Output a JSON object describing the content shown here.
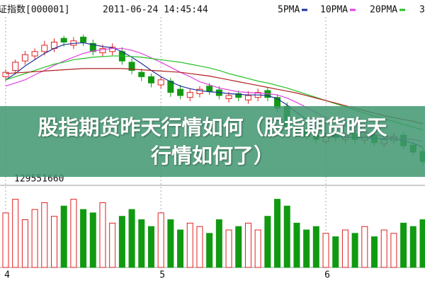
{
  "chart_data": [
    {
      "type": "candlestick",
      "title": "证指数[000001]",
      "subtitle": "2011-06-24 14:45:44",
      "categories": [
        "4",
        null,
        null,
        null,
        null,
        null,
        null,
        null,
        null,
        null,
        null,
        null,
        null,
        null,
        null,
        null,
        "5",
        null,
        null,
        null,
        null,
        null,
        null,
        null,
        null,
        null,
        null,
        null,
        null,
        null,
        null,
        null,
        null,
        "6",
        null,
        null,
        null,
        null,
        null,
        null,
        null,
        null,
        null,
        null
      ],
      "open": [
        2805,
        2815,
        2830,
        2838,
        2845,
        2850,
        2866,
        2855,
        2868,
        2858,
        2843,
        2845,
        2845,
        2828,
        2812,
        2805,
        2792,
        2798,
        2785,
        2772,
        2778,
        2790,
        2784,
        2770,
        2778,
        2768,
        2772,
        2783,
        2772,
        2758,
        2726,
        2718,
        2712,
        2702,
        2712,
        2705,
        2714,
        2704,
        2712,
        2698,
        2703,
        2712,
        2696,
        2686
      ],
      "high": [
        2817,
        2832,
        2846,
        2850,
        2862,
        2866,
        2870,
        2868,
        2872,
        2864,
        2856,
        2858,
        2852,
        2834,
        2818,
        2810,
        2806,
        2803,
        2792,
        2786,
        2790,
        2795,
        2790,
        2781,
        2783,
        2782,
        2786,
        2788,
        2777,
        2764,
        2732,
        2724,
        2717,
        2716,
        2718,
        2717,
        2720,
        2716,
        2718,
        2712,
        2716,
        2718,
        2702,
        2692
      ],
      "low": [
        2798,
        2809,
        2824,
        2832,
        2839,
        2844,
        2853,
        2849,
        2854,
        2839,
        2837,
        2839,
        2824,
        2809,
        2798,
        2788,
        2786,
        2773,
        2769,
        2766,
        2772,
        2776,
        2769,
        2764,
        2766,
        2762,
        2766,
        2766,
        2749,
        2719,
        2709,
        2704,
        2699,
        2696,
        2702,
        2699,
        2699,
        2698,
        2694,
        2692,
        2697,
        2689,
        2679,
        2664
      ],
      "close": [
        2812,
        2828,
        2840,
        2845,
        2855,
        2860,
        2860,
        2862,
        2860,
        2845,
        2850,
        2852,
        2830,
        2815,
        2805,
        2795,
        2800,
        2780,
        2775,
        2780,
        2785,
        2782,
        2775,
        2775,
        2772,
        2775,
        2780,
        2772,
        2755,
        2725,
        2715,
        2710,
        2705,
        2710,
        2708,
        2712,
        2705,
        2710,
        2700,
        2705,
        2710,
        2695,
        2685,
        2670
      ],
      "up_color": "#e02020",
      "down_color": "#119a11",
      "series": [
        {
          "name": "5PMA",
          "color": "#1f2f9f",
          "values": [
            2800,
            2810,
            2822,
            2832,
            2842,
            2850,
            2856,
            2858,
            2859,
            2856,
            2853,
            2851,
            2845,
            2836,
            2826,
            2815,
            2805,
            2797,
            2790,
            2786,
            2783,
            2781,
            2780,
            2778,
            2777,
            2776,
            2776,
            2775,
            2770,
            2760,
            2748,
            2737,
            2725,
            2713,
            2710,
            2709,
            2708,
            2708,
            2707,
            2706,
            2706,
            2703,
            2699,
            2693
          ]
        },
        {
          "name": "10PMA",
          "color": "#e040e0",
          "values": [
            2790,
            2795,
            2800,
            2808,
            2815,
            2823,
            2830,
            2836,
            2842,
            2846,
            2848,
            2850,
            2850,
            2847,
            2842,
            2835,
            2828,
            2820,
            2812,
            2805,
            2797,
            2792,
            2787,
            2784,
            2781,
            2780,
            2779,
            2778,
            2776,
            2771,
            2764,
            2756,
            2748,
            2740,
            2733,
            2726,
            2720,
            2716,
            2713,
            2710,
            2708,
            2707,
            2705,
            2702
          ]
        },
        {
          "name": "20PMA",
          "color": "#22c022",
          "values": [
            2800,
            2805,
            2810,
            2815,
            2820,
            2825,
            2828,
            2832,
            2834,
            2836,
            2837,
            2838,
            2838,
            2837,
            2836,
            2834,
            2832,
            2830,
            2828,
            2825,
            2822,
            2819,
            2815,
            2810,
            2806,
            2802,
            2798,
            2795,
            2791,
            2787,
            2782,
            2777,
            2772,
            2767,
            2762,
            2757,
            2752,
            2747,
            2742,
            2738,
            2734,
            2729,
            2725,
            2720
          ]
        },
        {
          "name": "3",
          "color": "#b02020",
          "values": [
            2810,
            2811,
            2812,
            2813,
            2814,
            2815,
            2816,
            2817,
            2818,
            2818,
            2818,
            2818,
            2818,
            2817,
            2816,
            2815,
            2814,
            2813,
            2812,
            2810,
            2808,
            2806,
            2803,
            2800,
            2797,
            2794,
            2791,
            2788,
            2785,
            2782,
            2779,
            2775,
            2771,
            2767,
            2763,
            2759,
            2755,
            2751,
            2747,
            2743,
            2740,
            2737,
            2734,
            2730
          ]
        }
      ],
      "ylim": [
        2640,
        2900
      ]
    },
    {
      "type": "bar",
      "title": "129551660",
      "values": [
        160000000,
        200000000,
        140000000,
        170000000,
        190000000,
        150000000,
        180000000,
        200000000,
        170000000,
        160000000,
        190000000,
        130000000,
        150000000,
        170000000,
        140000000,
        120000000,
        160000000,
        140000000,
        110000000,
        130000000,
        120000000,
        100000000,
        140000000,
        110000000,
        120000000,
        130000000,
        110000000,
        150000000,
        200000000,
        180000000,
        130000000,
        110000000,
        120000000,
        100000000,
        90000000,
        110000000,
        100000000,
        120000000,
        90000000,
        110000000,
        100000000,
        130000000,
        120000000,
        140000000
      ],
      "ylim": [
        0,
        220000000
      ]
    }
  ],
  "banner": "股指期货昨天行情如何（股指期货昨天行情如何了）"
}
